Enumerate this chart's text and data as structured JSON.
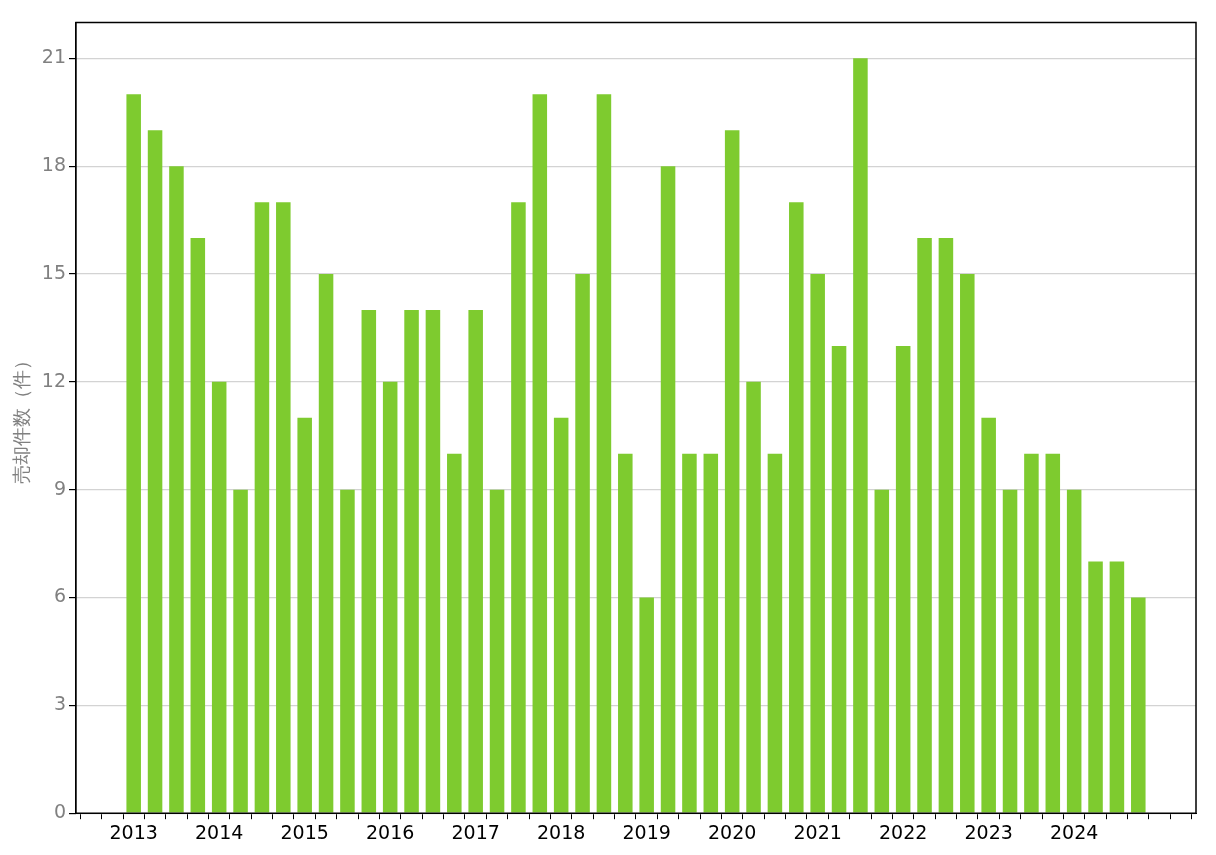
{
  "chart_data": {
    "type": "bar",
    "ylabel": "売却件数（件）",
    "categories": [
      "2013",
      null,
      null,
      null,
      "2014",
      null,
      null,
      null,
      "2015",
      null,
      null,
      null,
      "2016",
      null,
      null,
      null,
      "2017",
      null,
      null,
      null,
      "2018",
      null,
      null,
      null,
      "2019",
      null,
      null,
      null,
      "2020",
      null,
      null,
      null,
      "2021",
      null,
      null,
      null,
      "2022",
      null,
      null,
      null,
      "2023",
      null,
      null,
      null,
      "2024",
      null,
      null,
      null
    ],
    "values": [
      20,
      19,
      18,
      16,
      12,
      9,
      17,
      17,
      11,
      15,
      9,
      14,
      12,
      14,
      14,
      10,
      14,
      9,
      17,
      20,
      11,
      15,
      20,
      10,
      6,
      18,
      10,
      10,
      19,
      12,
      10,
      17,
      15,
      13,
      21,
      9,
      13,
      16,
      16,
      15,
      11,
      9,
      10,
      10,
      9,
      7,
      7,
      6
    ],
    "color": "#7ecb2f",
    "ylim": [
      0,
      22
    ],
    "yticks": [
      0,
      3,
      6,
      9,
      12,
      15,
      18,
      21
    ],
    "grid": "y"
  }
}
